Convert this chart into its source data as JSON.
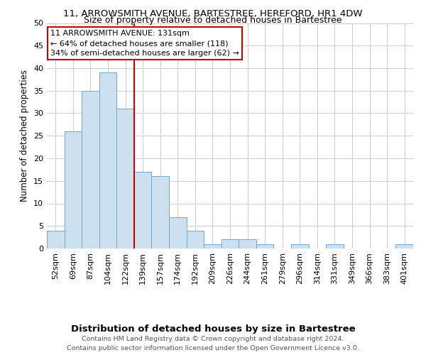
{
  "title": "11, ARROWSMITH AVENUE, BARTESTREE, HEREFORD, HR1 4DW",
  "subtitle": "Size of property relative to detached houses in Bartestree",
  "xlabel": "Distribution of detached houses by size in Bartestree",
  "ylabel": "Number of detached properties",
  "bar_labels": [
    "52sqm",
    "69sqm",
    "87sqm",
    "104sqm",
    "122sqm",
    "139sqm",
    "157sqm",
    "174sqm",
    "192sqm",
    "209sqm",
    "226sqm",
    "244sqm",
    "261sqm",
    "279sqm",
    "296sqm",
    "314sqm",
    "331sqm",
    "349sqm",
    "366sqm",
    "383sqm",
    "401sqm"
  ],
  "bar_values": [
    4,
    26,
    35,
    39,
    31,
    17,
    16,
    7,
    4,
    1,
    2,
    2,
    1,
    0,
    1,
    0,
    1,
    0,
    0,
    0,
    1
  ],
  "bar_color": "#cde0ef",
  "bar_edge_color": "#6aaad4",
  "ylim": [
    0,
    50
  ],
  "yticks": [
    0,
    5,
    10,
    15,
    20,
    25,
    30,
    35,
    40,
    45,
    50
  ],
  "vline_index": 4.5,
  "vline_color": "#cc0000",
  "annotation_text": "11 ARROWSMITH AVENUE: 131sqm\n← 64% of detached houses are smaller (118)\n34% of semi-detached houses are larger (62) →",
  "annotation_box_color": "#ffffff",
  "annotation_box_edge": "#cc0000",
  "footer_line1": "Contains HM Land Registry data © Crown copyright and database right 2024.",
  "footer_line2": "Contains public sector information licensed under the Open Government Licence v3.0.",
  "background_color": "#ffffff",
  "grid_color": "#cccccc",
  "title_fontsize": 9.5,
  "subtitle_fontsize": 9,
  "ylabel_fontsize": 8.5,
  "xlabel_fontsize": 9.5,
  "tick_fontsize": 8,
  "annotation_fontsize": 8,
  "footer_fontsize": 6.8
}
